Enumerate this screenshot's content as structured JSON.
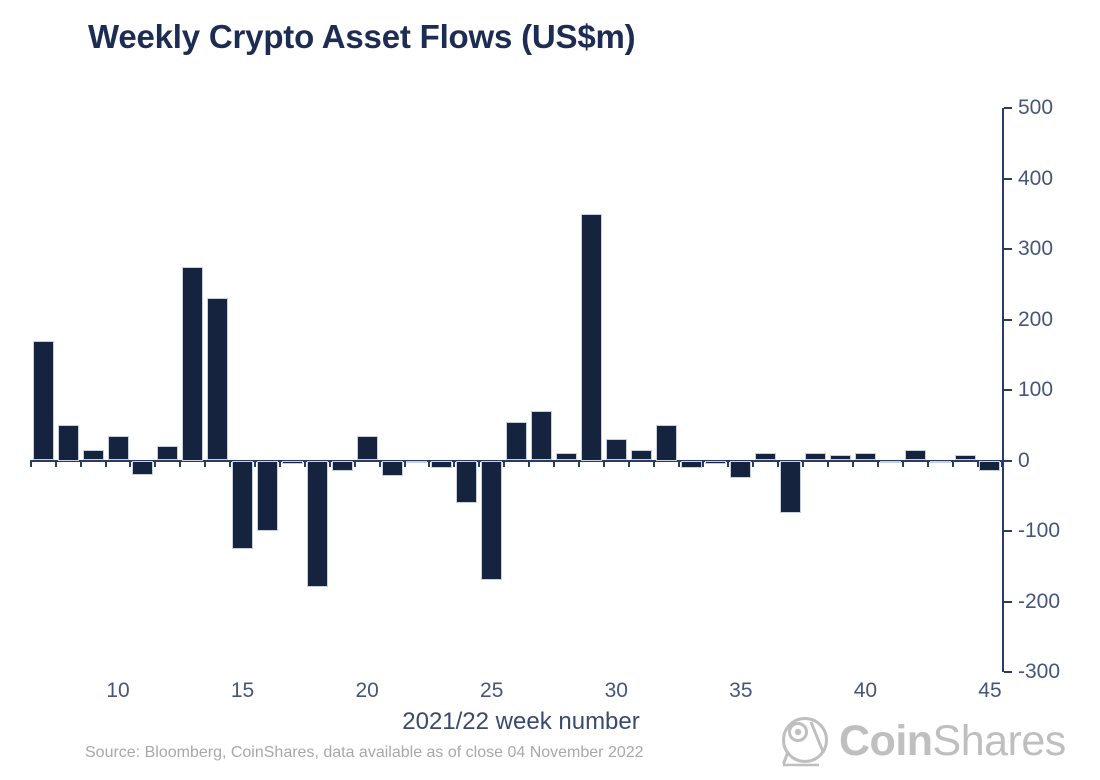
{
  "title": "Weekly Crypto Asset Flows (US$m)",
  "source_note": "Source: Bloomberg, CoinShares, data available as of close 04 November 2022",
  "logo": {
    "bold_part": "Coin",
    "light_part": "Shares"
  },
  "colors": {
    "bar": "#16233E",
    "bar_border": "#C7D0DE",
    "axis": "#2B3C63",
    "tick_label": "#46567A",
    "axis_title": "#3A4A6E",
    "title": "#1D2C52",
    "source": "#A8A8A8",
    "logo": "#BFBFBF"
  },
  "chart_data": {
    "type": "bar",
    "title": "Weekly Crypto Asset Flows (US$m)",
    "xlabel": "2021/22 week number",
    "ylabel": "",
    "x": [
      7,
      8,
      9,
      10,
      11,
      12,
      13,
      14,
      15,
      16,
      17,
      18,
      19,
      20,
      21,
      22,
      23,
      24,
      25,
      26,
      27,
      28,
      29,
      30,
      31,
      32,
      33,
      34,
      35,
      36,
      37,
      38,
      39,
      40,
      41,
      42,
      43,
      44,
      45
    ],
    "values": [
      170,
      50,
      15,
      35,
      -20,
      20,
      275,
      230,
      -125,
      -100,
      -5,
      -180,
      -15,
      35,
      -22,
      -3,
      -10,
      -60,
      -170,
      55,
      70,
      10,
      350,
      30,
      15,
      50,
      -10,
      -5,
      -25,
      10,
      -75,
      10,
      8,
      10,
      -2,
      15,
      -3,
      8,
      -15
    ],
    "ylim": [
      -300,
      500
    ],
    "yticks": [
      500,
      400,
      300,
      200,
      100,
      0,
      -100,
      -200,
      -300
    ],
    "xticks_labeled": [
      10,
      15,
      20,
      25,
      30,
      35,
      40,
      45
    ],
    "grid": false,
    "legend": "none",
    "y_axis_side": "right"
  }
}
